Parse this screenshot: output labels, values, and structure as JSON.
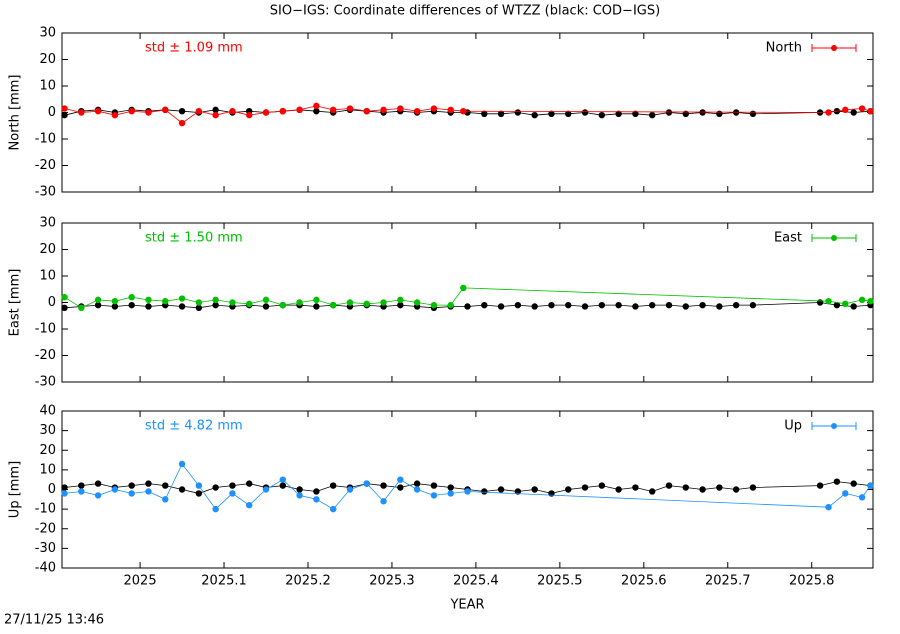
{
  "title": "SIO−IGS: Coordinate differences of WTZZ (black: COD−IGS)",
  "footer": "27/11/25 13:46",
  "chart_data": [
    {
      "type": "line",
      "ylabel": "North [mm]",
      "annotation": "std ± 1.09 mm",
      "annotation_color": "#ff0000",
      "xlim": [
        2024.907,
        2025.873
      ],
      "xticks": [
        2025,
        2025.1,
        2025.2,
        2025.3,
        2025.4,
        2025.5,
        2025.6,
        2025.7,
        2025.8
      ],
      "ylim": [
        -30,
        30
      ],
      "yticks": [
        -30,
        -20,
        -10,
        0,
        10,
        20,
        30
      ],
      "legend": "top-right",
      "series": [
        {
          "color": "#000000",
          "x": [
            2024.91,
            2024.93,
            2024.95,
            2024.97,
            2024.99,
            2025.01,
            2025.03,
            2025.05,
            2025.07,
            2025.09,
            2025.11,
            2025.13,
            2025.15,
            2025.17,
            2025.19,
            2025.21,
            2025.23,
            2025.25,
            2025.27,
            2025.29,
            2025.31,
            2025.33,
            2025.35,
            2025.37,
            2025.39,
            2025.41,
            2025.43,
            2025.45,
            2025.47,
            2025.49,
            2025.51,
            2025.53,
            2025.55,
            2025.57,
            2025.59,
            2025.61,
            2025.63,
            2025.65,
            2025.67,
            2025.69,
            2025.71,
            2025.73,
            2025.81,
            2025.83,
            2025.85,
            2025.87
          ],
          "values": [
            -1,
            0.5,
            1,
            0,
            1,
            0.5,
            1,
            0.5,
            0,
            1,
            0,
            0.5,
            0,
            0.5,
            1,
            0.5,
            0,
            1,
            0.5,
            0,
            0.5,
            0,
            0.5,
            0,
            0,
            -0.5,
            -0.5,
            0,
            -1,
            -0.5,
            -0.5,
            0,
            -1,
            -0.5,
            -0.5,
            -1,
            0,
            -0.5,
            0,
            -0.5,
            0,
            -0.5,
            0,
            0.5,
            0,
            0.5
          ]
        },
        {
          "name": "North",
          "color": "#ff0000",
          "x": [
            2024.91,
            2024.93,
            2024.95,
            2024.97,
            2024.99,
            2025.01,
            2025.03,
            2025.05,
            2025.07,
            2025.09,
            2025.11,
            2025.13,
            2025.15,
            2025.17,
            2025.19,
            2025.21,
            2025.23,
            2025.25,
            2025.27,
            2025.29,
            2025.31,
            2025.33,
            2025.35,
            2025.37,
            2025.385,
            2025.82,
            2025.84,
            2025.86,
            2025.87
          ],
          "values": [
            1.5,
            0,
            0.5,
            -1,
            0.5,
            0,
            1,
            -4,
            0.5,
            -1,
            0.5,
            -1,
            0,
            0.5,
            1,
            2.5,
            1,
            1.5,
            0.5,
            1,
            1.5,
            0.5,
            1.5,
            1,
            0.5,
            0,
            1,
            1.5,
            0.5
          ]
        }
      ]
    },
    {
      "type": "line",
      "ylabel": "East [mm]",
      "annotation": "std ± 1.50 mm",
      "annotation_color": "#00c000",
      "xlim": [
        2024.907,
        2025.873
      ],
      "xticks": [
        2025,
        2025.1,
        2025.2,
        2025.3,
        2025.4,
        2025.5,
        2025.6,
        2025.7,
        2025.8
      ],
      "ylim": [
        -30,
        30
      ],
      "yticks": [
        -30,
        -20,
        -10,
        0,
        10,
        20,
        30
      ],
      "legend": "top-right",
      "series": [
        {
          "color": "#000000",
          "x": [
            2024.91,
            2024.93,
            2024.95,
            2024.97,
            2024.99,
            2025.01,
            2025.03,
            2025.05,
            2025.07,
            2025.09,
            2025.11,
            2025.13,
            2025.15,
            2025.17,
            2025.19,
            2025.21,
            2025.23,
            2025.25,
            2025.27,
            2025.29,
            2025.31,
            2025.33,
            2025.35,
            2025.37,
            2025.39,
            2025.41,
            2025.43,
            2025.45,
            2025.47,
            2025.49,
            2025.51,
            2025.53,
            2025.55,
            2025.57,
            2025.59,
            2025.61,
            2025.63,
            2025.65,
            2025.67,
            2025.69,
            2025.71,
            2025.73,
            2025.81,
            2025.83,
            2025.85,
            2025.87
          ],
          "values": [
            -2,
            -1.5,
            -1,
            -1.5,
            -1,
            -1.5,
            -1,
            -1.5,
            -2,
            -1,
            -1.5,
            -1,
            -1.5,
            -1,
            -1,
            -1.5,
            -1,
            -1.5,
            -1,
            -1.5,
            -1,
            -1.5,
            -2,
            -1.5,
            -1.5,
            -1,
            -1.5,
            -1,
            -1.5,
            -1,
            -1,
            -1.5,
            -1,
            -1,
            -1.5,
            -1,
            -1,
            -1.5,
            -1,
            -1.5,
            -1,
            -1,
            0,
            -1,
            -1.5,
            -1
          ]
        },
        {
          "name": "East",
          "color": "#00c000",
          "x": [
            2024.91,
            2024.93,
            2024.95,
            2024.97,
            2024.99,
            2025.01,
            2025.03,
            2025.05,
            2025.07,
            2025.09,
            2025.11,
            2025.13,
            2025.15,
            2025.17,
            2025.19,
            2025.21,
            2025.23,
            2025.25,
            2025.27,
            2025.29,
            2025.31,
            2025.33,
            2025.35,
            2025.37,
            2025.385,
            2025.82,
            2025.84,
            2025.86,
            2025.87
          ],
          "values": [
            2,
            -2,
            1,
            0.5,
            2,
            1,
            0.5,
            1.5,
            0,
            1,
            0,
            -0.5,
            1,
            -1,
            0,
            1,
            -1,
            0,
            -0.5,
            0,
            1,
            0,
            -1,
            -1,
            5.5,
            0.5,
            -0.5,
            1,
            0.5
          ]
        }
      ]
    },
    {
      "type": "line",
      "ylabel": "Up [mm]",
      "annotation": "std ± 4.82 mm",
      "annotation_color": "#1e90ff",
      "xlabel": "YEAR",
      "xlim": [
        2024.907,
        2025.873
      ],
      "xticks": [
        2025,
        2025.1,
        2025.2,
        2025.3,
        2025.4,
        2025.5,
        2025.6,
        2025.7,
        2025.8
      ],
      "ylim": [
        -40,
        40
      ],
      "yticks": [
        -40,
        -30,
        -20,
        -10,
        0,
        10,
        20,
        30,
        40
      ],
      "legend": "top-right",
      "series": [
        {
          "color": "#000000",
          "x": [
            2024.91,
            2024.93,
            2024.95,
            2024.97,
            2024.99,
            2025.01,
            2025.03,
            2025.05,
            2025.07,
            2025.09,
            2025.11,
            2025.13,
            2025.15,
            2025.17,
            2025.19,
            2025.21,
            2025.23,
            2025.25,
            2025.27,
            2025.29,
            2025.31,
            2025.33,
            2025.35,
            2025.37,
            2025.39,
            2025.41,
            2025.43,
            2025.45,
            2025.47,
            2025.49,
            2025.51,
            2025.53,
            2025.55,
            2025.57,
            2025.59,
            2025.61,
            2025.63,
            2025.65,
            2025.67,
            2025.69,
            2025.71,
            2025.73,
            2025.81,
            2025.83,
            2025.85,
            2025.87
          ],
          "values": [
            1,
            2,
            3,
            1,
            2,
            3,
            2,
            0,
            -2,
            1,
            2,
            3,
            1,
            2,
            0,
            -1,
            2,
            1,
            3,
            2,
            1,
            3,
            2,
            1,
            0,
            -1,
            0,
            -1,
            0,
            -2,
            0,
            1,
            2,
            0,
            1,
            -1,
            2,
            1,
            0,
            1,
            0,
            1,
            2,
            4,
            3,
            2
          ]
        },
        {
          "name": "Up",
          "color": "#1e90ff",
          "x": [
            2024.91,
            2024.93,
            2024.95,
            2024.97,
            2024.99,
            2025.01,
            2025.03,
            2025.05,
            2025.07,
            2025.09,
            2025.11,
            2025.13,
            2025.15,
            2025.17,
            2025.19,
            2025.21,
            2025.23,
            2025.25,
            2025.27,
            2025.29,
            2025.31,
            2025.33,
            2025.35,
            2025.37,
            2025.39,
            2025.82,
            2025.84,
            2025.86,
            2025.87
          ],
          "values": [
            -2,
            -1,
            -3,
            0,
            -2,
            -1,
            -5,
            13,
            2,
            -10,
            -2,
            -8,
            0,
            5,
            -3,
            -5,
            -10,
            0,
            3,
            -6,
            5,
            0,
            -3,
            -2,
            -1,
            -9,
            -2,
            -4,
            2
          ]
        }
      ]
    }
  ]
}
